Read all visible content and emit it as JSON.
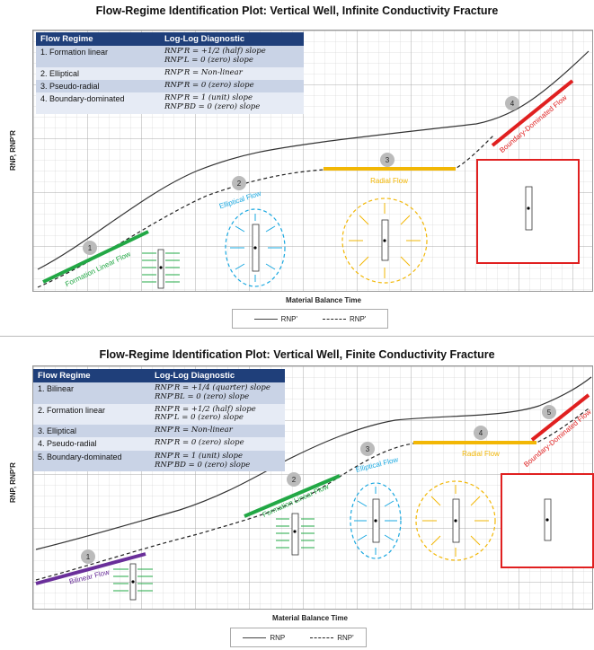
{
  "top": {
    "title": "Flow-Regime Identification Plot: Vertical Well, Infinite Conductivity Fracture",
    "ylabel": "RNP, RNP'R",
    "xlabel": "Material Balance Time",
    "legend": {
      "solid": "RNP'",
      "dashed": "RNP'"
    },
    "table": {
      "headers": [
        "Flow Regime",
        "Log-Log Diagnostic"
      ],
      "rows": [
        {
          "regime": "1. Formation linear",
          "diag": [
            "RNP'R = +1/2 (half) slope",
            "RNP'L = 0 (zero) slope"
          ]
        },
        {
          "regime": "2. Elliptical",
          "diag": [
            "RNP'R = Non-linear"
          ]
        },
        {
          "regime": "3. Pseudo-radial",
          "diag": [
            "RNP'R = 0 (zero) slope"
          ]
        },
        {
          "regime": "4. Boundary-dominated",
          "diag": [
            "RNP'R = 1 (unit) slope",
            "RNP'BD = 0 (zero) slope"
          ]
        }
      ]
    },
    "labels": {
      "n1": "1",
      "n2": "2",
      "n3": "3",
      "n4": "4",
      "formation_linear": "Formation Linear Flow",
      "elliptical": "Elliptical Flow",
      "radial": "Radial Flow",
      "boundary": "Boundary-Dominated Flow"
    },
    "colors": {
      "green": "#22a845",
      "cyan": "#1aa8e0",
      "yellow": "#f2b705",
      "red": "#e02020",
      "purple": "#6a2f9a"
    }
  },
  "bottom": {
    "title": "Flow-Regime Identification Plot: Vertical Well, Finite Conductivity Fracture",
    "ylabel": "RNP, RNP'R",
    "xlabel": "Material Balance Time",
    "legend": {
      "solid": "RNP",
      "dashed": "RNP'"
    },
    "table": {
      "headers": [
        "Flow Regime",
        "Log-Log Diagnostic"
      ],
      "rows": [
        {
          "regime": "1. Bilinear",
          "diag": [
            "RNP'R = +1/4 (quarter) slope",
            "RNP'BL = 0 (zero) slope"
          ]
        },
        {
          "regime": "2. Formation linear",
          "diag": [
            "RNP'R = +1/2 (half) slope",
            "RNP'L = 0 (zero) slope"
          ]
        },
        {
          "regime": "3. Elliptical",
          "diag": [
            "RNP'R = Non-linear"
          ]
        },
        {
          "regime": "4. Pseudo-radial",
          "diag": [
            "RNP'R = 0 (zero) slope"
          ]
        },
        {
          "regime": "5. Boundary-dominated",
          "diag": [
            "RNP'R = 1 (unit) slope",
            "RNP'BD = 0 (zero) slope"
          ]
        }
      ]
    },
    "labels": {
      "n1": "1",
      "n2": "2",
      "n3": "3",
      "n4": "4",
      "n5": "5",
      "bilinear": "Bilinear Flow",
      "formation_linear": "Formation Linear Flow",
      "elliptical": "Elliptical Flow",
      "radial": "Radial Flow",
      "boundary": "Boundary-Dominated Flow"
    }
  }
}
